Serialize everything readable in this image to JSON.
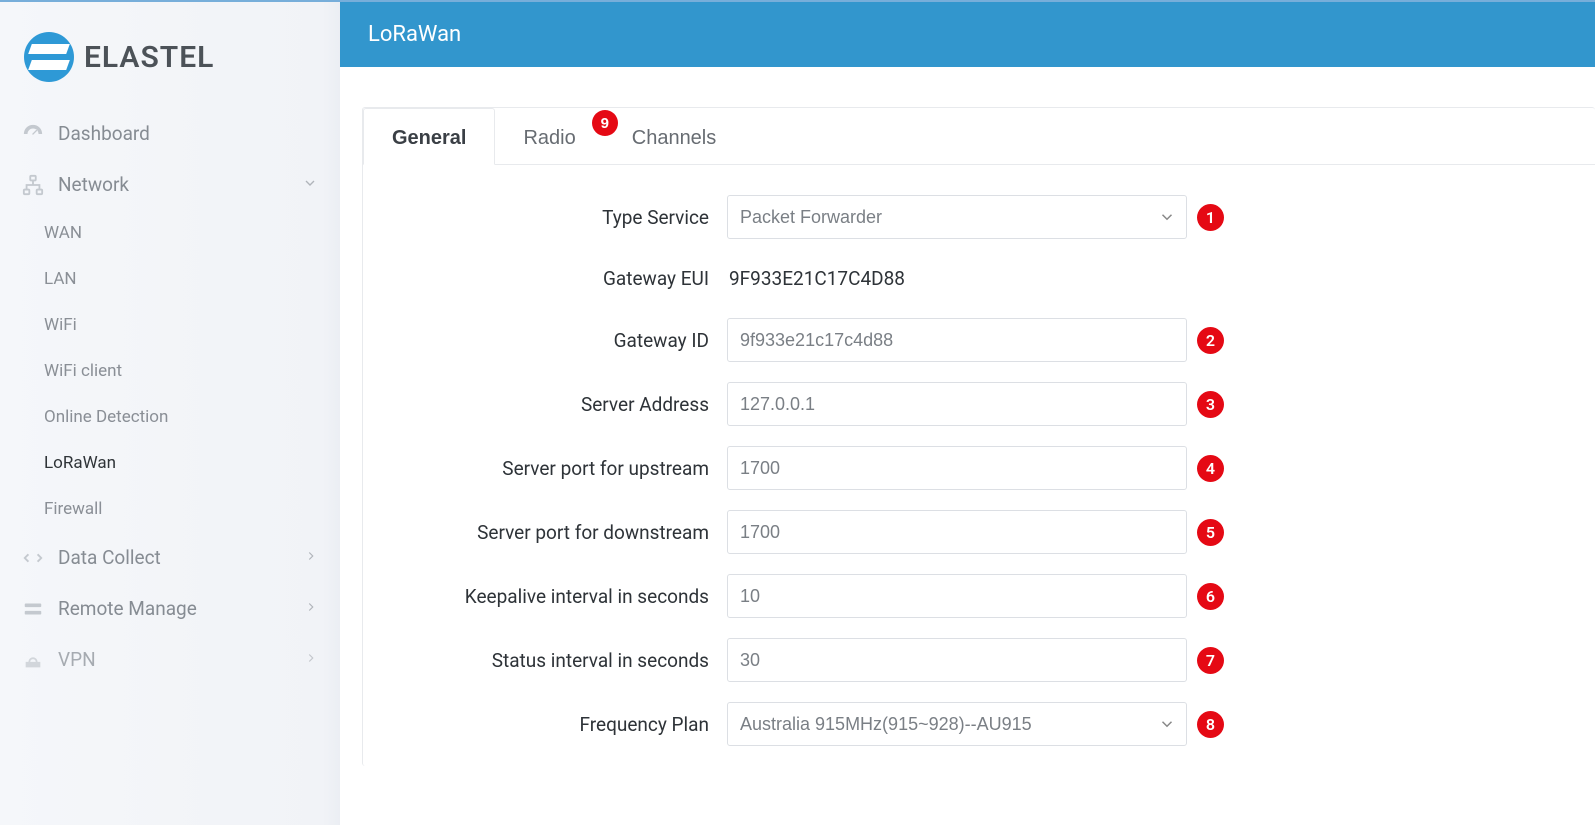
{
  "brand": {
    "name": "ELASTEL"
  },
  "sidebar": {
    "items": [
      {
        "label": "Dashboard",
        "icon": "dashboard"
      },
      {
        "label": "Network",
        "icon": "network",
        "expanded": true,
        "children": [
          {
            "label": "WAN"
          },
          {
            "label": "LAN"
          },
          {
            "label": "WiFi"
          },
          {
            "label": "WiFi client"
          },
          {
            "label": "Online Detection"
          },
          {
            "label": "LoRaWan",
            "active": true
          },
          {
            "label": "Firewall"
          }
        ]
      },
      {
        "label": "Data Collect",
        "icon": "data-collect"
      },
      {
        "label": "Remote Manage",
        "icon": "remote-manage"
      },
      {
        "label": "VPN",
        "icon": "vpn"
      }
    ]
  },
  "header": {
    "title": "LoRaWan"
  },
  "tabs": [
    {
      "label": "General",
      "active": true
    },
    {
      "label": "Radio",
      "badge": "9"
    },
    {
      "label": "Channels"
    }
  ],
  "form": {
    "rows": [
      {
        "label": "Type Service",
        "type": "select",
        "value": "Packet Forwarder",
        "callout": "1"
      },
      {
        "label": "Gateway EUI",
        "type": "static",
        "value": "9F933E21C17C4D88"
      },
      {
        "label": "Gateway ID",
        "type": "input",
        "value": "9f933e21c17c4d88",
        "callout": "2"
      },
      {
        "label": "Server Address",
        "type": "input",
        "value": "127.0.0.1",
        "callout": "3"
      },
      {
        "label": "Server port for upstream",
        "type": "input",
        "value": "1700",
        "callout": "4"
      },
      {
        "label": "Server port for downstream",
        "type": "input",
        "value": "1700",
        "callout": "5"
      },
      {
        "label": "Keepalive interval in seconds",
        "type": "input",
        "value": "10",
        "callout": "6"
      },
      {
        "label": "Status interval in seconds",
        "type": "input",
        "value": "30",
        "callout": "7"
      },
      {
        "label": "Frequency Plan",
        "type": "select",
        "value": "Australia 915MHz(915~928)--AU915",
        "callout": "8"
      }
    ]
  },
  "colors": {
    "accent": "#3296cd",
    "badge": "#e50914",
    "sidebar_bg": "#f5f7fa",
    "text_muted": "#868c93",
    "text_dark": "#2e3338",
    "border": "#e8eaed"
  }
}
